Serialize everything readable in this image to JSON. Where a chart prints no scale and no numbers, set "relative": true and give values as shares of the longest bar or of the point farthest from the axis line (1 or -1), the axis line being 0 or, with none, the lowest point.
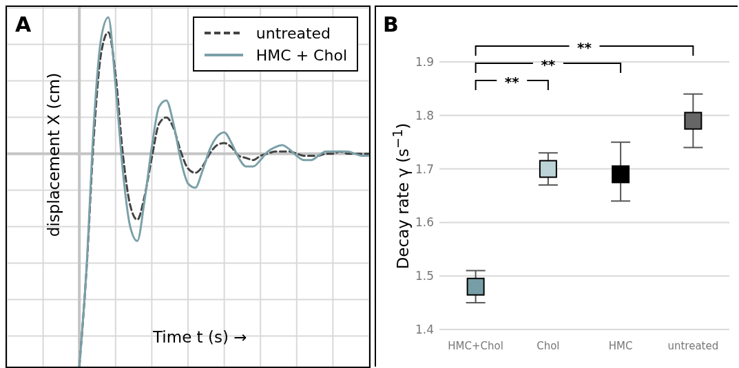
{
  "chart_data": [
    {
      "type": "line",
      "title": "A",
      "xlabel": "Time t (s) →",
      "ylabel": "displacement X (cm)",
      "relative": true,
      "grid": true,
      "legend": "top right",
      "marker": "none",
      "categories": [
        null,
        null,
        null,
        null,
        null,
        null,
        null,
        null,
        null,
        null,
        null,
        null,
        null,
        null,
        null,
        null,
        null,
        null,
        null,
        null,
        null,
        null,
        null,
        null,
        null,
        null,
        null,
        null,
        null,
        null,
        null,
        null,
        null,
        null,
        null,
        null,
        null,
        null,
        null,
        null,
        null,
        null,
        null,
        null,
        null,
        null,
        null,
        null,
        null,
        null,
        null
      ],
      "series": [
        {
          "name": "untreated",
          "color": "#444444",
          "line_style": "dashed",
          "values": [
            null,
            null,
            null,
            null,
            null,
            null,
            null,
            null,
            null,
            null,
            -1,
            -0.54,
            0.08,
            0.47,
            0.57,
            0.37,
            0,
            -0.24,
            -0.31,
            -0.2,
            -0.02,
            0.14,
            0.17,
            0.12,
            0.01,
            -0.07,
            -0.09,
            -0.06,
            0,
            0.04,
            0.05,
            0.03,
            -0.01,
            -0.02,
            -0.03,
            -0.01,
            0,
            0.01,
            0.01,
            0.01,
            0,
            -0.01,
            -0.01,
            -0.01,
            0,
            0,
            0.01,
            0,
            0,
            0,
            0
          ]
        },
        {
          "name": "HMC + Chol",
          "color": "#7aa0a8",
          "line_style": "solid",
          "values": [
            null,
            null,
            null,
            null,
            null,
            null,
            null,
            null,
            null,
            null,
            -1,
            -0.53,
            0.14,
            0.54,
            0.64,
            0.32,
            -0.08,
            -0.34,
            -0.41,
            -0.22,
            0.03,
            0.22,
            0.25,
            0.14,
            -0.03,
            -0.14,
            -0.16,
            -0.08,
            0.02,
            0.08,
            0.1,
            0.05,
            -0.02,
            -0.06,
            -0.06,
            -0.03,
            0.01,
            0.03,
            0.04,
            0.02,
            -0.01,
            -0.03,
            -0.03,
            -0.01,
            0.01,
            0.01,
            0.01,
            0.01,
            0,
            -0.01,
            -0.01
          ]
        }
      ]
    },
    {
      "type": "scatter",
      "title": "B",
      "ylabel": "Decay rate γ (s$^{−1}$)",
      "categories": [
        "HMC+Chol",
        "Chol",
        "HMC",
        "untreated"
      ],
      "values": [
        1.48,
        1.7,
        1.69,
        1.79
      ],
      "errors": [
        [
          1.45,
          1.51
        ],
        [
          1.67,
          1.73
        ],
        [
          1.64,
          1.75
        ],
        [
          1.74,
          1.84
        ]
      ],
      "colors": [
        "#779ea6",
        "#bcd3d7",
        "#000000",
        "#666666"
      ],
      "marker": "square",
      "ylim": [
        1.4,
        1.9
      ],
      "yticks": [
        1.4,
        1.5,
        1.6,
        1.7,
        1.8,
        1.9
      ],
      "grid": "y",
      "annotations": [
        "**",
        "**",
        "**"
      ]
    }
  ]
}
